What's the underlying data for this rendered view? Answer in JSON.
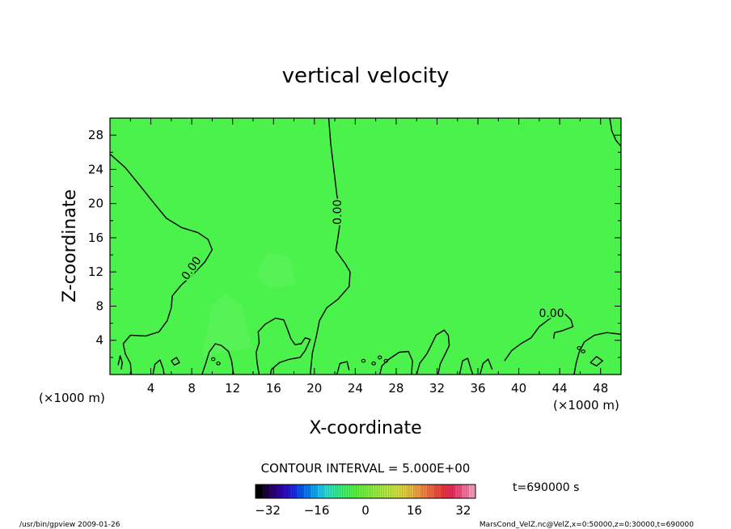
{
  "chart_data": {
    "type": "contour",
    "title": "vertical velocity",
    "xlabel": "X-coordinate",
    "ylabel": "Z-coordinate",
    "x_unit_left": "(×1000 m)",
    "x_unit_right": "(×1000 m)",
    "xlim": [
      0,
      50
    ],
    "ylim": [
      0,
      30
    ],
    "x_ticks": [
      4,
      8,
      12,
      16,
      20,
      24,
      28,
      32,
      36,
      40,
      44,
      48
    ],
    "y_ticks": [
      4,
      8,
      12,
      16,
      20,
      24,
      28
    ],
    "contour_interval_text": "CONTOUR INTERVAL = 5.000E+00",
    "contour_labels": [
      {
        "text": "0.00",
        "x": 8.0,
        "y": 12.4,
        "angle": -55
      },
      {
        "text": "0.00",
        "x": 22.3,
        "y": 19.0,
        "angle": -90
      },
      {
        "text": "0.00",
        "x": 43.2,
        "y": 7.1,
        "angle": 0
      }
    ],
    "zero_contours": [
      [
        [
          0,
          25.8
        ],
        [
          1.5,
          24.2
        ],
        [
          3,
          22
        ],
        [
          4.2,
          20.2
        ],
        [
          5.5,
          18.3
        ],
        [
          7,
          17.2
        ],
        [
          8.6,
          16.6
        ],
        [
          9.6,
          15.8
        ],
        [
          10,
          14.6
        ],
        [
          9.3,
          13.2
        ],
        [
          8.2,
          11.8
        ],
        [
          7,
          10.5
        ],
        [
          6.1,
          9.2
        ],
        [
          6,
          7.8
        ],
        [
          5.6,
          6.3
        ],
        [
          4.8,
          5
        ],
        [
          3.5,
          4.5
        ],
        [
          2,
          4.6
        ],
        [
          1.3,
          3.6
        ],
        [
          1.5,
          2.4
        ],
        [
          2,
          1.3
        ],
        [
          2.1,
          0
        ]
      ],
      [
        [
          21.4,
          30
        ],
        [
          21.6,
          27
        ],
        [
          21.9,
          24
        ],
        [
          22.2,
          21
        ],
        [
          22.6,
          18.5
        ],
        [
          22.3,
          16
        ],
        [
          22.1,
          14.5
        ],
        [
          23,
          13
        ],
        [
          23.5,
          12
        ],
        [
          23.4,
          10.3
        ],
        [
          22.3,
          8.8
        ],
        [
          21.2,
          7.8
        ],
        [
          20.5,
          6.3
        ],
        [
          20.2,
          4.5
        ],
        [
          19.8,
          2.5
        ],
        [
          19.6,
          0
        ]
      ],
      [
        [
          50,
          4.7
        ],
        [
          48.6,
          4.9
        ],
        [
          47.4,
          4.6
        ],
        [
          46.4,
          3.8
        ],
        [
          45.9,
          2.6
        ],
        [
          45.6,
          1.3
        ],
        [
          45.4,
          0
        ]
      ],
      [
        [
          48.9,
          30
        ],
        [
          49.1,
          28.5
        ],
        [
          49.5,
          27.4
        ],
        [
          50,
          26.7
        ]
      ],
      [
        [
          14.6,
          0
        ],
        [
          14.4,
          1.3
        ],
        [
          14.3,
          2.6
        ],
        [
          14.6,
          3.7
        ],
        [
          14.5,
          5
        ],
        [
          15.2,
          5.9
        ],
        [
          16.2,
          6.6
        ],
        [
          17,
          6.4
        ],
        [
          17.4,
          5.2
        ],
        [
          17.7,
          4.2
        ],
        [
          18.1,
          3.5
        ],
        [
          18.7,
          3.6
        ],
        [
          19.1,
          4.3
        ],
        [
          19.6,
          4.1
        ],
        [
          19.1,
          2.8
        ],
        [
          18.6,
          2
        ],
        [
          17.6,
          1.8
        ],
        [
          16.6,
          1.4
        ],
        [
          15.8,
          0.6
        ],
        [
          15.7,
          0
        ]
      ],
      [
        [
          30,
          0
        ],
        [
          30.3,
          1.3
        ],
        [
          31,
          2.4
        ],
        [
          31.5,
          3.6
        ],
        [
          31.9,
          4.6
        ],
        [
          32.7,
          5.2
        ],
        [
          33.1,
          4.6
        ],
        [
          33.2,
          3.4
        ],
        [
          32.8,
          2.4
        ],
        [
          32.3,
          1.2
        ],
        [
          32.1,
          0
        ]
      ],
      [
        [
          38.6,
          1.6
        ],
        [
          39.3,
          2.8
        ],
        [
          40.2,
          3.6
        ],
        [
          41.2,
          4.3
        ],
        [
          42,
          5.6
        ],
        [
          43.1,
          6.6
        ],
        [
          43.8,
          7.1
        ]
      ],
      [
        [
          44.5,
          7.1
        ],
        [
          45.1,
          6.4
        ],
        [
          45.3,
          5.6
        ],
        [
          44.2,
          5.1
        ],
        [
          43.5,
          4.9
        ],
        [
          43.4,
          4.2
        ]
      ],
      [
        [
          9,
          0
        ],
        [
          9.4,
          1.4
        ],
        [
          9.7,
          2.6
        ],
        [
          10.3,
          3.6
        ],
        [
          10.9,
          3.4
        ],
        [
          11.6,
          2.7
        ],
        [
          11.9,
          1.6
        ],
        [
          12.1,
          0
        ]
      ],
      [
        [
          0.8,
          1.1
        ],
        [
          1,
          2.2
        ],
        [
          1.2,
          1.4
        ],
        [
          1.1,
          0.6
        ]
      ],
      [
        [
          26.4,
          0
        ],
        [
          26.6,
          1
        ],
        [
          27.3,
          1.8
        ],
        [
          28.3,
          2.6
        ],
        [
          29.2,
          2.7
        ],
        [
          29.6,
          1.6
        ],
        [
          29.5,
          0
        ]
      ],
      [
        [
          22.2,
          0
        ],
        [
          22.5,
          1.3
        ],
        [
          23.2,
          1.5
        ],
        [
          23.4,
          0.5
        ]
      ],
      [
        [
          34.2,
          0
        ],
        [
          34.5,
          1.6
        ],
        [
          35,
          1.9
        ],
        [
          35.3,
          0.7
        ],
        [
          35.5,
          0
        ]
      ],
      [
        [
          36.2,
          0
        ],
        [
          36.5,
          1.3
        ],
        [
          37,
          1.8
        ],
        [
          37.4,
          0.6
        ]
      ],
      [
        [
          4.2,
          0
        ],
        [
          4.4,
          1.2
        ],
        [
          4.9,
          1.7
        ],
        [
          5.2,
          0.7
        ],
        [
          5.3,
          0
        ]
      ],
      [
        [
          6,
          1.6
        ],
        [
          6.5,
          2
        ],
        [
          6.8,
          1.4
        ],
        [
          6.3,
          1.1
        ],
        [
          6,
          1.6
        ]
      ],
      [
        [
          47,
          1.4
        ],
        [
          47.6,
          2.1
        ],
        [
          48.2,
          1.6
        ],
        [
          47.6,
          1
        ],
        [
          47,
          1.4
        ]
      ]
    ],
    "small_blobs": [
      [
        24.8,
        1.6
      ],
      [
        25.8,
        1.3
      ],
      [
        26.4,
        2
      ],
      [
        27,
        1.6
      ],
      [
        10.1,
        1.8
      ],
      [
        10.6,
        1.3
      ],
      [
        45.9,
        3.1
      ],
      [
        46.3,
        2.7
      ]
    ],
    "colorbar": {
      "min": -36,
      "max": 36,
      "ticks": [
        -32,
        -16,
        0,
        16,
        32
      ],
      "colors": [
        "#000000",
        "#1a0040",
        "#2a0070",
        "#3000a0",
        "#2a10c0",
        "#1a2adc",
        "#0a50e6",
        "#0a78ee",
        "#10a0f0",
        "#20c4e8",
        "#30dcc8",
        "#30e6a0",
        "#3aec78",
        "#48f058",
        "#58f040",
        "#6cf040",
        "#80ee40",
        "#96ec40",
        "#a8e840",
        "#bce440",
        "#d0e040",
        "#dcd040",
        "#e4bc40",
        "#e8a040",
        "#ec8440",
        "#ec6840",
        "#ea4c40",
        "#e63440",
        "#e82c5a",
        "#ec4a7a",
        "#f0709a",
        "#f498b8"
      ]
    },
    "field_color": "#4cf24c",
    "time_text": "t=690000 s"
  },
  "footer": {
    "left": "/usr/bin/gpview  2009-01-26",
    "right": "MarsCond_VelZ.nc@VelZ,x=0:50000,z=0:30000,t=690000"
  }
}
